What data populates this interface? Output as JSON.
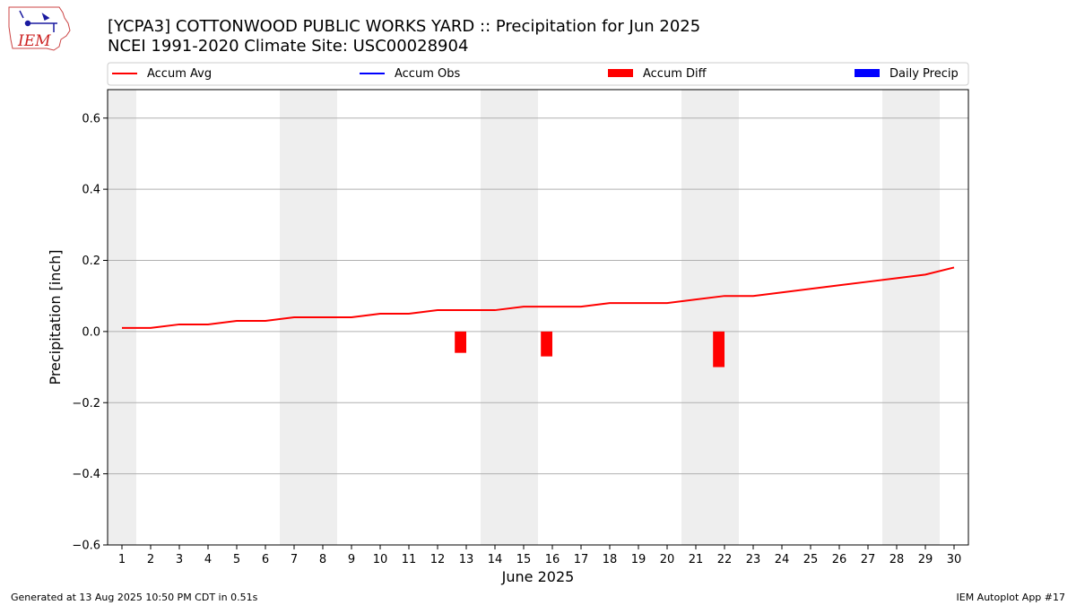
{
  "logo_text": "IEM",
  "title_line1": "[YCPA3] COTTONWOOD PUBLIC WORKS YARD :: Precipitation for Jun 2025",
  "title_line2": "NCEI 1991-2020 Climate Site: USC00028904",
  "footer_left": "Generated at 13 Aug 2025 10:50 PM CDT in 0.51s",
  "footer_right": "IEM Autoplot App #17",
  "colors": {
    "accum_avg": "#ff0000",
    "accum_obs": "#0000ff",
    "accum_diff": "#ff0000",
    "daily_precip": "#0000ff",
    "weekend_shade": "#eeeeee",
    "grid": "#b0b0b0"
  },
  "chart_data": {
    "type": "line",
    "xlabel": "June 2025",
    "ylabel": "Precipitation [inch]",
    "xlim": [
      0.5,
      30.5
    ],
    "ylim": [
      -0.6,
      0.68
    ],
    "yticks": [
      -0.6,
      -0.4,
      -0.2,
      0.0,
      0.2,
      0.4,
      0.6
    ],
    "ytick_labels": [
      "−0.6",
      "−0.4",
      "−0.2",
      "0.0",
      "0.2",
      "0.4",
      "0.6"
    ],
    "x": [
      1,
      2,
      3,
      4,
      5,
      6,
      7,
      8,
      9,
      10,
      11,
      12,
      13,
      14,
      15,
      16,
      17,
      18,
      19,
      20,
      21,
      22,
      23,
      24,
      25,
      26,
      27,
      28,
      29,
      30
    ],
    "xtick_labels": [
      "1",
      "2",
      "3",
      "4",
      "5",
      "6",
      "7",
      "8",
      "9",
      "10",
      "11",
      "12",
      "13",
      "14",
      "15",
      "16",
      "17",
      "18",
      "19",
      "20",
      "21",
      "22",
      "23",
      "24",
      "25",
      "26",
      "27",
      "28",
      "29",
      "30"
    ],
    "grid": "horizontal",
    "legend_position": "top",
    "legend": [
      "Accum Avg",
      "Accum Obs",
      "Accum Diff",
      "Daily Precip"
    ],
    "weekend_spans": [
      [
        0.5,
        1.5
      ],
      [
        6.5,
        8.5
      ],
      [
        13.5,
        15.5
      ],
      [
        20.5,
        22.5
      ],
      [
        27.5,
        29.5
      ]
    ],
    "series": [
      {
        "name": "Accum Avg",
        "type": "line",
        "values": [
          0.01,
          0.01,
          0.02,
          0.02,
          0.03,
          0.03,
          0.04,
          0.04,
          0.04,
          0.05,
          0.05,
          0.06,
          0.06,
          0.06,
          0.07,
          0.07,
          0.07,
          0.08,
          0.08,
          0.08,
          0.09,
          0.1,
          0.1,
          0.11,
          0.12,
          0.13,
          0.14,
          0.15,
          0.16,
          0.18
        ]
      },
      {
        "name": "Accum Diff",
        "type": "bar",
        "points": [
          {
            "x": 13,
            "value": -0.06
          },
          {
            "x": 16,
            "value": -0.07
          },
          {
            "x": 22,
            "value": -0.1
          }
        ]
      }
    ]
  }
}
